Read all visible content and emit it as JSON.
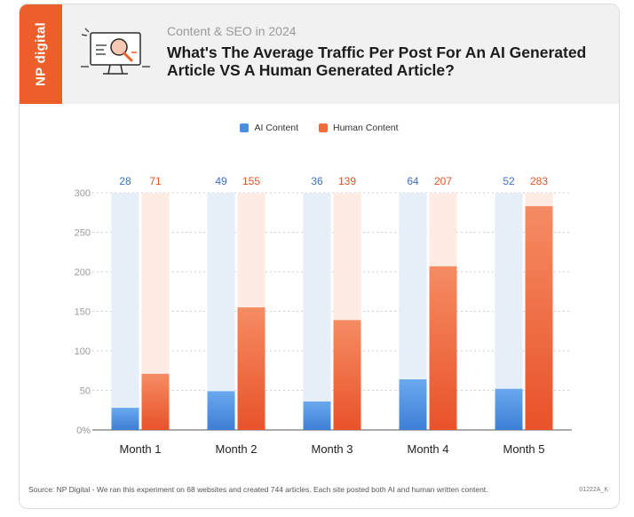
{
  "brand": {
    "logo_text": "NP digital"
  },
  "header": {
    "kicker": "Content & SEO in 2024",
    "title": "What's The Average Traffic Per Post For An AI Generated Article VS A Human Generated Article?"
  },
  "icon": "computer-search-illustration",
  "colors": {
    "brand": "#ec5f2b",
    "ai": "#4a90e2",
    "human": "#f06a3a",
    "ai_track": "#e6eef8",
    "human_track": "#fdebe4",
    "ai_label": "#3f72c4",
    "human_label": "#e6542a"
  },
  "chart_data": {
    "type": "bar",
    "categories": [
      "Month 1",
      "Month 2",
      "Month 3",
      "Month 4",
      "Month 5"
    ],
    "series": [
      {
        "name": "AI Content",
        "values": [
          28,
          49,
          36,
          64,
          52
        ]
      },
      {
        "name": "Human Content",
        "values": [
          71,
          155,
          139,
          207,
          283
        ]
      }
    ],
    "ylim": [
      0,
      300
    ],
    "yticks": [
      0,
      50,
      100,
      150,
      200,
      250,
      300
    ],
    "ytick_labels": [
      "0%",
      "50",
      "100",
      "150",
      "200",
      "250",
      "300"
    ],
    "grid": true,
    "legend_position": "top-center"
  },
  "footer": {
    "source": "Source: NP Digital - We ran this experiment on 68 websites and created 744 articles. Each site posted both AI and human written content.",
    "code": "01222A_K"
  }
}
